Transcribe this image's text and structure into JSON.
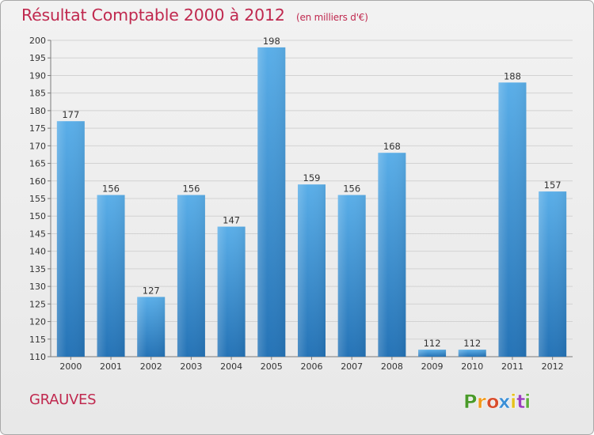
{
  "title": "Résultat Comptable 2000 à 2012",
  "subtitle": "(en milliers d'€)",
  "commune": "GRAUVES",
  "logo": {
    "text": "Proxiti",
    "colors": [
      "#4a9a2a",
      "#f29b1c",
      "#d84d2c",
      "#3b8fd6",
      "#e5c21d",
      "#9c3fbd",
      "#62b03d"
    ]
  },
  "colors": {
    "title": "#c0294f",
    "bar_top": "#5aaee8",
    "bar_bottom": "#2573b6",
    "grid": "#d2d2d2",
    "axis": "#7b7b7b"
  },
  "chart_data": {
    "type": "bar",
    "title": "Résultat Comptable 2000 à 2012",
    "subtitle": "(en milliers d'€)",
    "xlabel": "",
    "ylabel": "",
    "categories": [
      "2000",
      "2001",
      "2002",
      "2003",
      "2004",
      "2005",
      "2006",
      "2007",
      "2008",
      "2009",
      "2010",
      "2011",
      "2012"
    ],
    "values": [
      177,
      156,
      127,
      156,
      147,
      198,
      159,
      156,
      168,
      112,
      112,
      188,
      157
    ],
    "ylim": [
      110,
      200
    ],
    "ytick_step": 5,
    "grid": true,
    "legend": "none"
  }
}
